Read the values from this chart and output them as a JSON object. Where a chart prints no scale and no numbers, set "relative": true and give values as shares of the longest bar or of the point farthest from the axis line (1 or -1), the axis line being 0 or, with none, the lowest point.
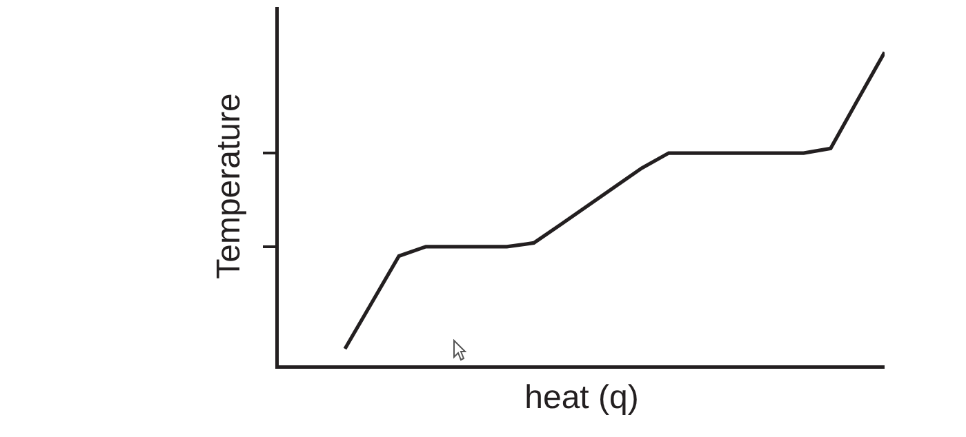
{
  "chart_data": {
    "type": "line",
    "relative": true,
    "xlabel": "heat (q)",
    "ylabel": "Temperature",
    "categories": [
      null,
      null,
      null,
      null,
      null,
      null,
      null,
      null,
      null,
      null,
      null,
      null,
      null,
      null,
      null,
      null,
      null,
      null,
      null,
      null,
      null
    ],
    "series": [
      {
        "color": "#231f20",
        "values": [
          0.053,
          0.201,
          0.349,
          0.379,
          0.379,
          0.379,
          0.379,
          0.391,
          0.45,
          0.51,
          0.57,
          0.63,
          0.678,
          0.678,
          0.678,
          0.678,
          0.678,
          0.678,
          0.693,
          0.847,
          1
        ]
      }
    ],
    "marker": "none",
    "line_style": "solid"
  }
}
